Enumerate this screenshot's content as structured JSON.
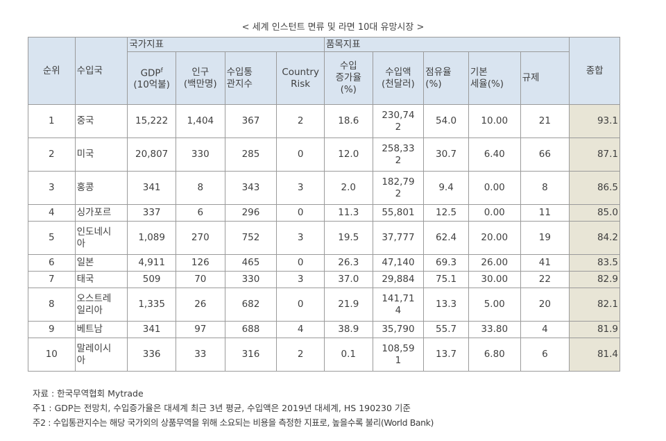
{
  "title": "< 세계 인스턴트 면류 및 라면 10대 유망시장 >",
  "headers": {
    "rank": "순위",
    "country": "수입국",
    "group_national": "국가지표",
    "group_item": "품목지표",
    "gdp_line1": "GDP",
    "gdp_sup": "f",
    "gdp_line2": "(10억불)",
    "pop_line1": "인구",
    "pop_line2": "(백만명)",
    "customs_line1": "수입통",
    "customs_line2": "관지수",
    "risk_line1": "Country",
    "risk_line2": "Risk",
    "growth_line1": "수입",
    "growth_line2": "증가율",
    "growth_line3": "(%)",
    "import_line1": "수입액",
    "import_line2": "(천달러)",
    "share_line1": "점유율",
    "share_line2": "(%)",
    "tariff_line1": "기본",
    "tariff_line2": "세율(%)",
    "regulation": "규제",
    "total": "종합"
  },
  "rows": [
    {
      "rank": "1",
      "country_a": "중국",
      "country_b": "",
      "gdp": "15,222",
      "pop": "1,404",
      "customs": "367",
      "risk": "2",
      "growth": "18.6",
      "import_a": "230,74",
      "import_b": "2",
      "share": "54.0",
      "tariff": "10.00",
      "regulation": "21",
      "total": "93.1"
    },
    {
      "rank": "2",
      "country_a": "미국",
      "country_b": "",
      "gdp": "20,807",
      "pop": "330",
      "customs": "285",
      "risk": "0",
      "growth": "12.0",
      "import_a": "258,33",
      "import_b": "2",
      "share": "30.7",
      "tariff": "6.40",
      "regulation": "66",
      "total": "87.1"
    },
    {
      "rank": "3",
      "country_a": "홍콩",
      "country_b": "",
      "gdp": "341",
      "pop": "8",
      "customs": "343",
      "risk": "3",
      "growth": "2.0",
      "import_a": "182,79",
      "import_b": "2",
      "share": "9.4",
      "tariff": "0.00",
      "regulation": "8",
      "total": "86.5"
    },
    {
      "rank": "4",
      "country_a": "싱가포르",
      "country_b": "",
      "gdp": "337",
      "pop": "6",
      "customs": "296",
      "risk": "0",
      "growth": "11.3",
      "import_a": "55,801",
      "import_b": "",
      "share": "12.5",
      "tariff": "0.00",
      "regulation": "11",
      "total": "85.0"
    },
    {
      "rank": "5",
      "country_a": "인도네시",
      "country_b": "아",
      "gdp": "1,089",
      "pop": "270",
      "customs": "752",
      "risk": "3",
      "growth": "19.5",
      "import_a": "37,777",
      "import_b": "",
      "share": "62.4",
      "tariff": "20.00",
      "regulation": "19",
      "total": "84.2"
    },
    {
      "rank": "6",
      "country_a": "일본",
      "country_b": "",
      "gdp": "4,911",
      "pop": "126",
      "customs": "465",
      "risk": "0",
      "growth": "26.3",
      "import_a": "47,140",
      "import_b": "",
      "share": "69.3",
      "tariff": "26.00",
      "regulation": "41",
      "total": "83.5"
    },
    {
      "rank": "7",
      "country_a": "태국",
      "country_b": "",
      "gdp": "509",
      "pop": "70",
      "customs": "330",
      "risk": "3",
      "growth": "37.0",
      "import_a": "29,884",
      "import_b": "",
      "share": "75.1",
      "tariff": "30.00",
      "regulation": "22",
      "total": "82.9"
    },
    {
      "rank": "8",
      "country_a": "오스트레",
      "country_b": "일리아",
      "gdp": "1,335",
      "pop": "26",
      "customs": "682",
      "risk": "0",
      "growth": "21.9",
      "import_a": "141,71",
      "import_b": "4",
      "share": "13.3",
      "tariff": "5.00",
      "regulation": "20",
      "total": "82.1"
    },
    {
      "rank": "9",
      "country_a": "베트남",
      "country_b": "",
      "gdp": "341",
      "pop": "97",
      "customs": "688",
      "risk": "4",
      "growth": "38.9",
      "import_a": "35,790",
      "import_b": "",
      "share": "55.7",
      "tariff": "33.80",
      "regulation": "4",
      "total": "81.9"
    },
    {
      "rank": "10",
      "country_a": "말레이시",
      "country_b": "아",
      "gdp": "336",
      "pop": "33",
      "customs": "316",
      "risk": "2",
      "growth": "0.1",
      "import_a": "108,59",
      "import_b": "1",
      "share": "13.7",
      "tariff": "6.80",
      "regulation": "6",
      "total": "81.4"
    }
  ],
  "notes": {
    "source": "자료 : 한국무역협회 Mytrade",
    "note1": "주1 : GDP는 전망치, 수입증가율은 대세계 최근 3년 평균, 수입액은 2019년 대세계, HS 190230 기준",
    "note2": "주2 : 수입통관지수는 해당 국가외의 상품무역을 위해 소요되는 비용을 측정한 지표로, 높을수록 불리(World Bank)"
  }
}
